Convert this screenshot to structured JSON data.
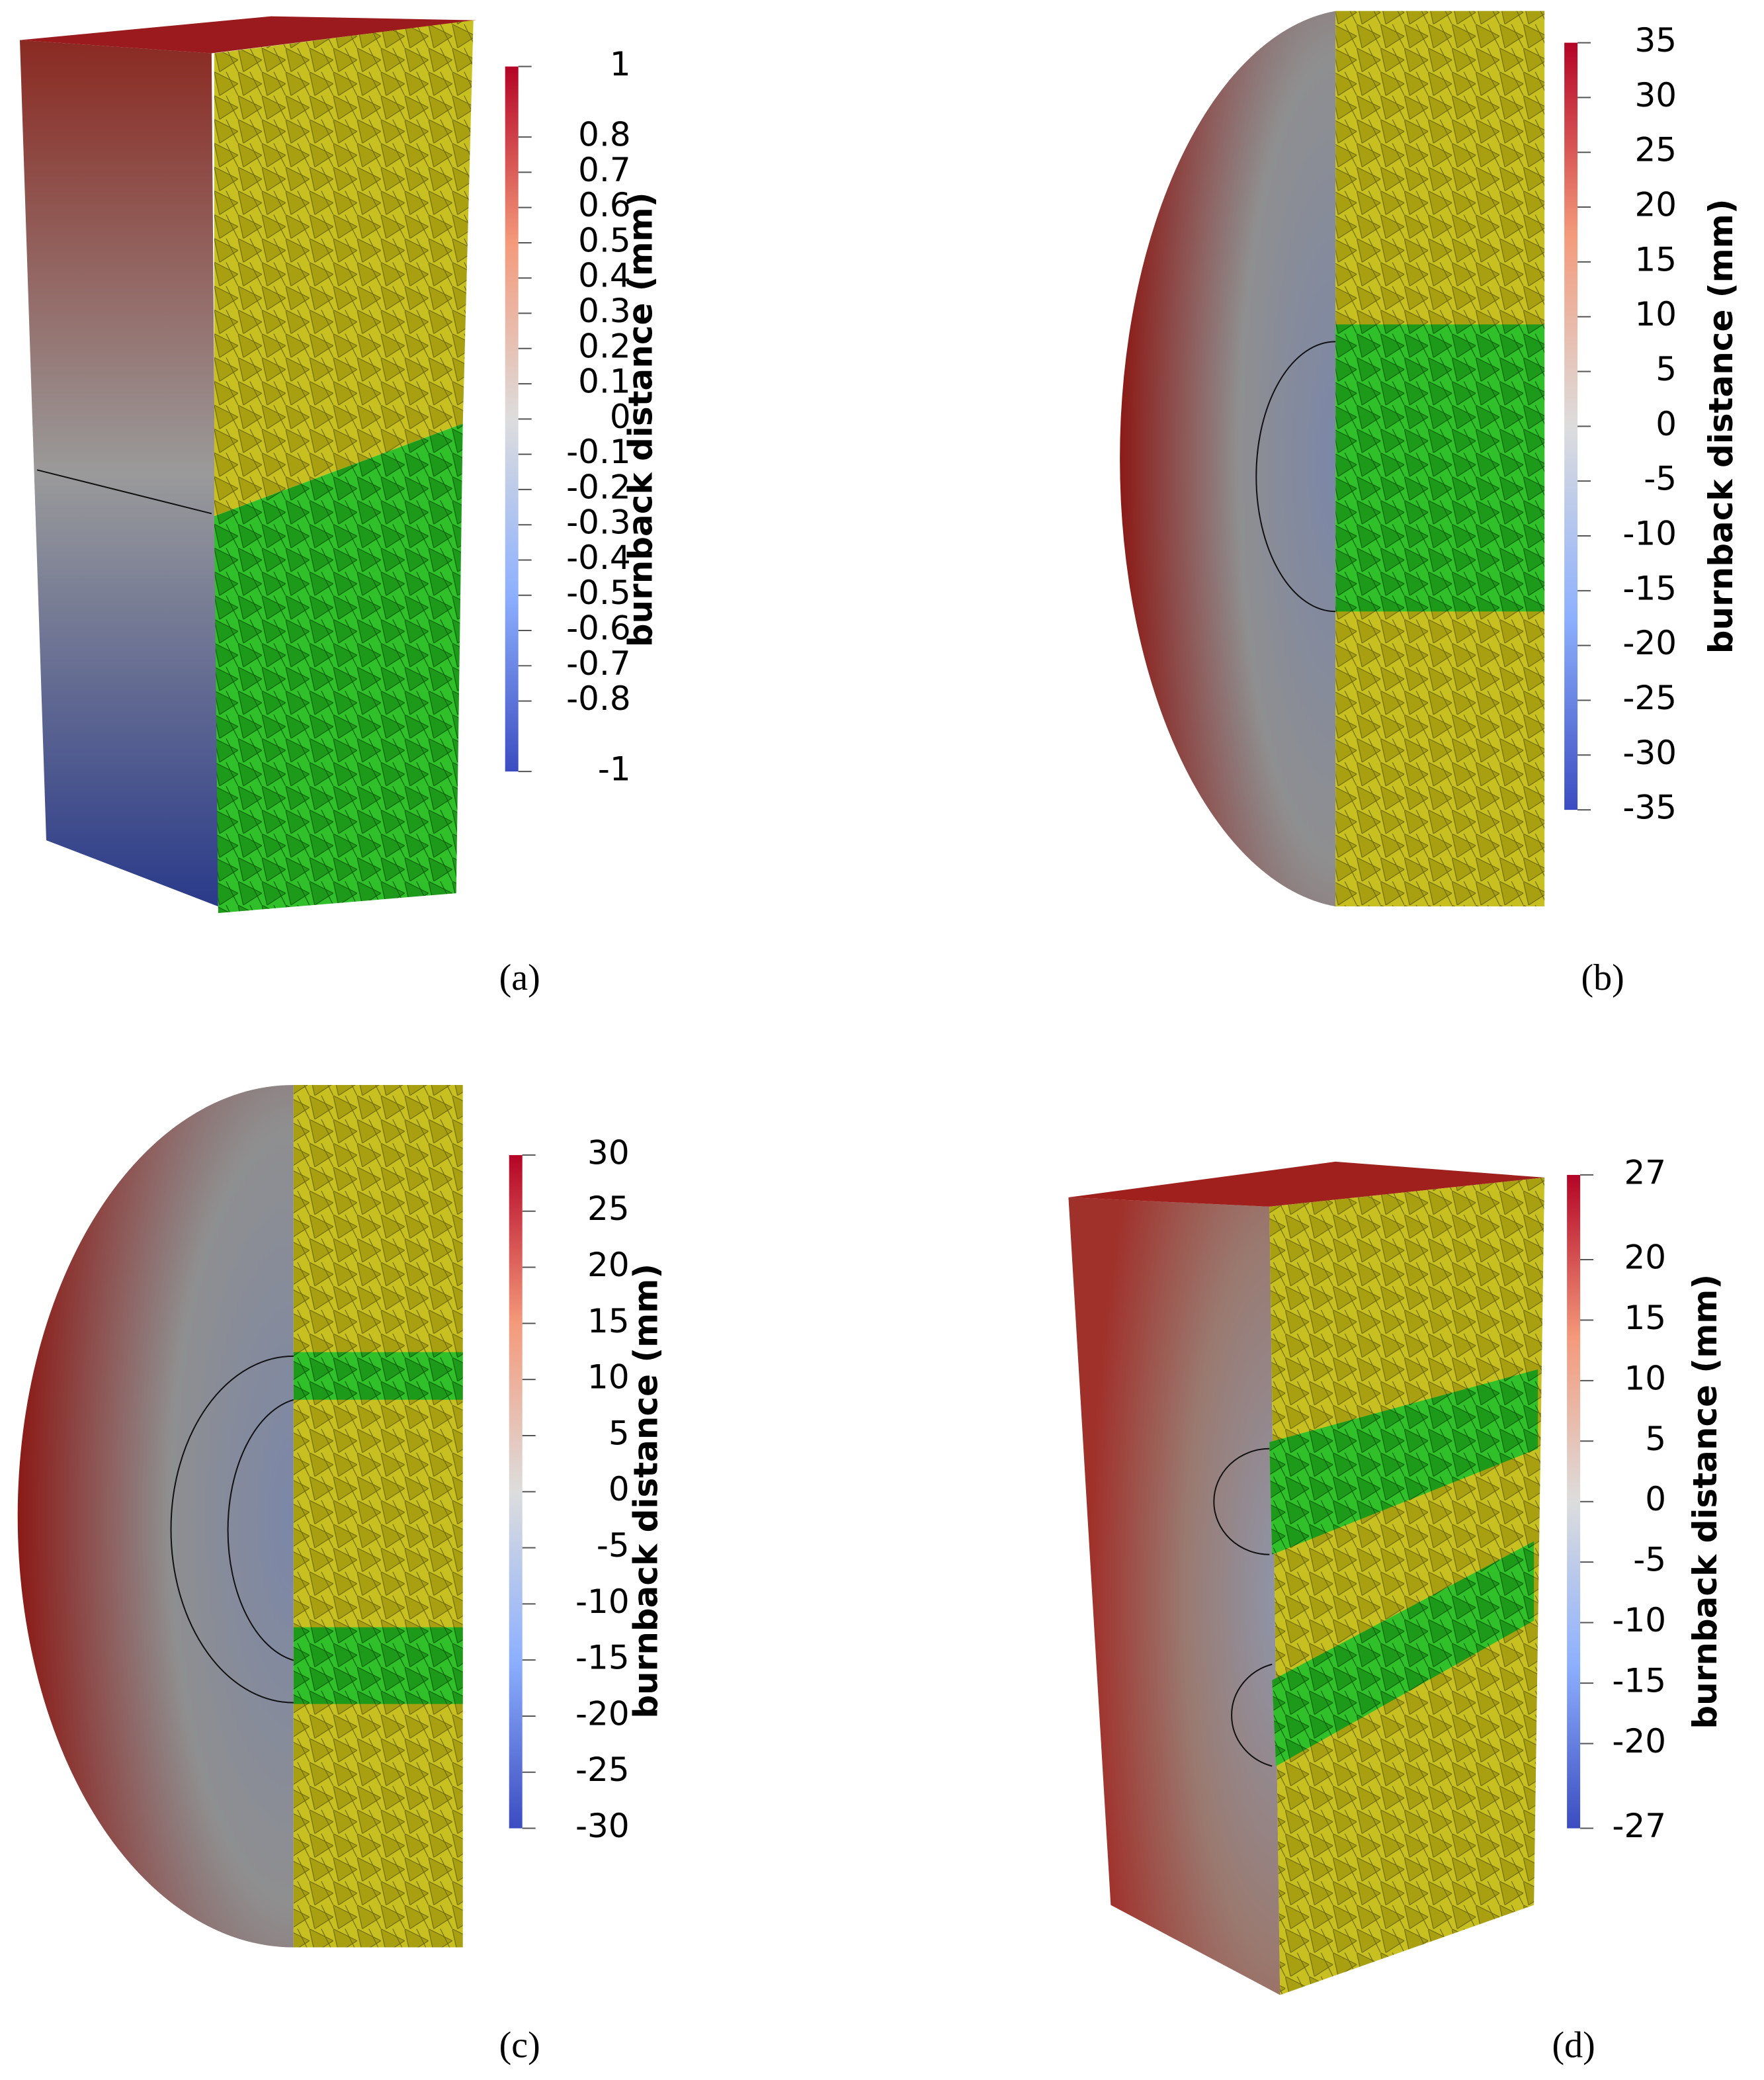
{
  "panels": [
    {
      "label": "(a)",
      "colorbar": {
        "title": "burnback distance (mm)",
        "range": [
          -1,
          1
        ],
        "ticks": [
          1,
          0.8,
          0.7,
          0.6,
          0.5,
          0.4,
          0.3,
          0.2,
          0.1,
          0,
          -0.1,
          -0.2,
          -0.3,
          -0.4,
          -0.5,
          -0.6,
          -0.7,
          -0.8,
          -1
        ]
      }
    },
    {
      "label": "(b)",
      "colorbar": {
        "title": "burnback distance (mm)",
        "range": [
          -35,
          35
        ],
        "ticks": [
          35,
          30,
          25,
          20,
          15,
          10,
          5,
          0,
          -5,
          -10,
          -15,
          -20,
          -25,
          -30,
          -35
        ]
      }
    },
    {
      "label": "(c)",
      "colorbar": {
        "title": "burnback distance (mm)",
        "range": [
          -30,
          30
        ],
        "ticks": [
          30,
          25,
          20,
          15,
          10,
          5,
          0,
          -5,
          -10,
          -15,
          -20,
          -25,
          -30
        ]
      }
    },
    {
      "label": "(d)",
      "colorbar": {
        "title": "burnback distance (mm)",
        "range": [
          -27,
          27
        ],
        "ticks": [
          27,
          20,
          15,
          10,
          5,
          0,
          -5,
          -10,
          -15,
          -20,
          -27
        ]
      }
    }
  ]
}
